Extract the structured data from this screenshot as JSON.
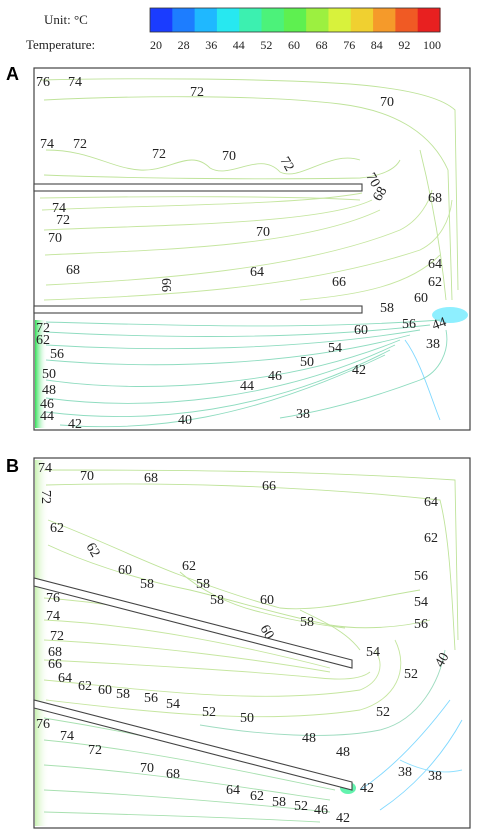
{
  "colorbar": {
    "unit_label": "Unit: °C",
    "quantity_label": "Temperature:",
    "ticks": [
      "20",
      "28",
      "36",
      "44",
      "52",
      "60",
      "68",
      "76",
      "84",
      "92",
      "100"
    ],
    "colors": [
      "#1a3cff",
      "#1d7dff",
      "#1fb8ff",
      "#27e8f0",
      "#3cf0b0",
      "#4cf27a",
      "#5ef050",
      "#9cf040",
      "#d8f23c",
      "#f0d030",
      "#f59a2a",
      "#f05a24",
      "#e82020"
    ]
  },
  "panels": [
    {
      "letter": "A",
      "contour_labels": [
        "76",
        "74",
        "72",
        "70",
        "74",
        "72",
        "72",
        "70",
        "72",
        "70",
        "68",
        "68",
        "74",
        "72",
        "70",
        "70",
        "68",
        "66",
        "64",
        "66",
        "64",
        "62",
        "60",
        "58",
        "56",
        "44",
        "38",
        "60",
        "54",
        "42",
        "50",
        "46",
        "44",
        "40",
        "38",
        "72",
        "62",
        "56",
        "50",
        "48",
        "46",
        "44",
        "42"
      ]
    },
    {
      "letter": "B",
      "contour_labels": [
        "74",
        "72",
        "70",
        "68",
        "66",
        "64",
        "62",
        "62",
        "62",
        "60",
        "62",
        "58",
        "58",
        "58",
        "60",
        "56",
        "54",
        "60",
        "58",
        "56",
        "76",
        "74",
        "72",
        "68",
        "66",
        "64",
        "62",
        "60",
        "58",
        "56",
        "54",
        "52",
        "50",
        "54",
        "52",
        "40",
        "52",
        "48",
        "48",
        "38",
        "38",
        "76",
        "74",
        "72",
        "70",
        "68",
        "64",
        "62",
        "58",
        "52",
        "46",
        "42",
        "42"
      ]
    }
  ]
}
